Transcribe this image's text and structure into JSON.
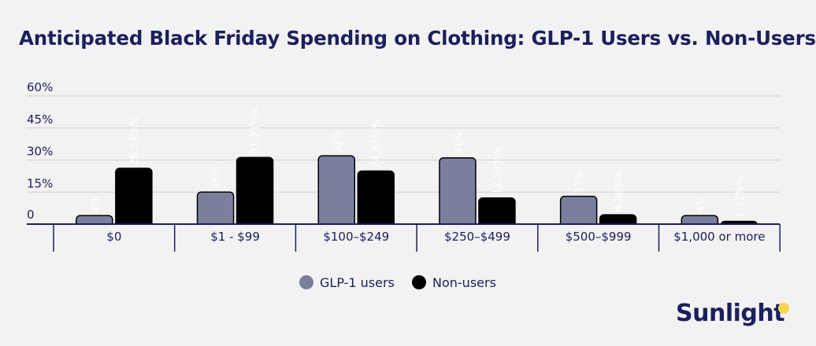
{
  "chart_data": {
    "type": "bar",
    "title": "Anticipated Black Friday Spending on Clothing: GLP-1 Users vs. Non-Users",
    "xlabel": "",
    "ylabel": "",
    "ylim": [
      0,
      60
    ],
    "y_ticks": [
      "0",
      "15%",
      "30%",
      "45%",
      "60%"
    ],
    "y_tick_values": [
      0,
      15,
      30,
      45,
      60
    ],
    "grid": true,
    "legend_position": "bottom-center",
    "categories": [
      "$0",
      "$1 - $99",
      "$100–$249",
      "$250–$499",
      "$500–$999",
      "$1,000 or more"
    ],
    "series": [
      {
        "name": "GLP-1 users",
        "color": "#7b7f9c",
        "values": [
          4,
          15,
          32,
          31,
          13,
          4
        ],
        "labels": [
          "4%",
          "15%",
          "32%",
          "31%",
          "13%",
          "4%"
        ]
      },
      {
        "name": "Non-users",
        "color": "#000000",
        "values": [
          26.14,
          31.21,
          24.83,
          12.24,
          4.38,
          1.31
        ],
        "labels": [
          "26.14%%",
          "31.21%%",
          "24.83%%",
          "12.24%%",
          "4.38%%",
          "1.31%%"
        ]
      }
    ]
  },
  "brand": {
    "name": "Sunlight",
    "dot_color": "#f7d64d"
  }
}
